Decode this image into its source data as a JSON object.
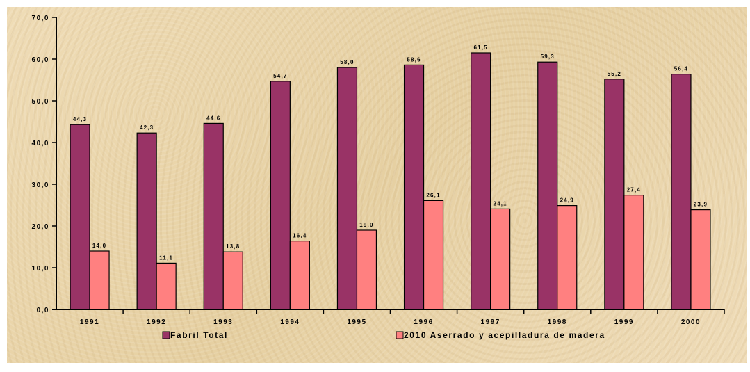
{
  "chart_data": {
    "type": "bar",
    "categories": [
      "1991",
      "1992",
      "1993",
      "1994",
      "1995",
      "1996",
      "1997",
      "1998",
      "1999",
      "2000"
    ],
    "series": [
      {
        "name": "Fabril Total",
        "color": "#993366",
        "values": [
          44.3,
          42.3,
          44.6,
          54.7,
          58.0,
          58.6,
          61.5,
          59.3,
          55.2,
          56.4
        ],
        "labels": [
          "44,3",
          "42,3",
          "44,6",
          "54,7",
          "58,0",
          "58,6",
          "61,5",
          "59,3",
          "55,2",
          "56,4"
        ]
      },
      {
        "name": "2010 Aserrado y acepilladura de madera",
        "color": "#ff8080",
        "values": [
          14.0,
          11.1,
          13.8,
          16.4,
          19.0,
          26.1,
          24.1,
          24.9,
          27.4,
          23.9
        ],
        "labels": [
          "14,0",
          "11,1",
          "13,8",
          "16,4",
          "19,0",
          "26,1",
          "24,1",
          "24,9",
          "27,4",
          "23,9"
        ]
      }
    ],
    "ylim": [
      0,
      70
    ],
    "y_ticks": [
      0,
      10,
      20,
      30,
      40,
      50,
      60,
      70
    ],
    "y_tick_labels": [
      "0,0",
      "10,0",
      "20,0",
      "30,0",
      "40,0",
      "50,0",
      "60,0",
      "70,0"
    ],
    "legend_position": "bottom",
    "grid": false,
    "background": "#ecd9b0"
  }
}
